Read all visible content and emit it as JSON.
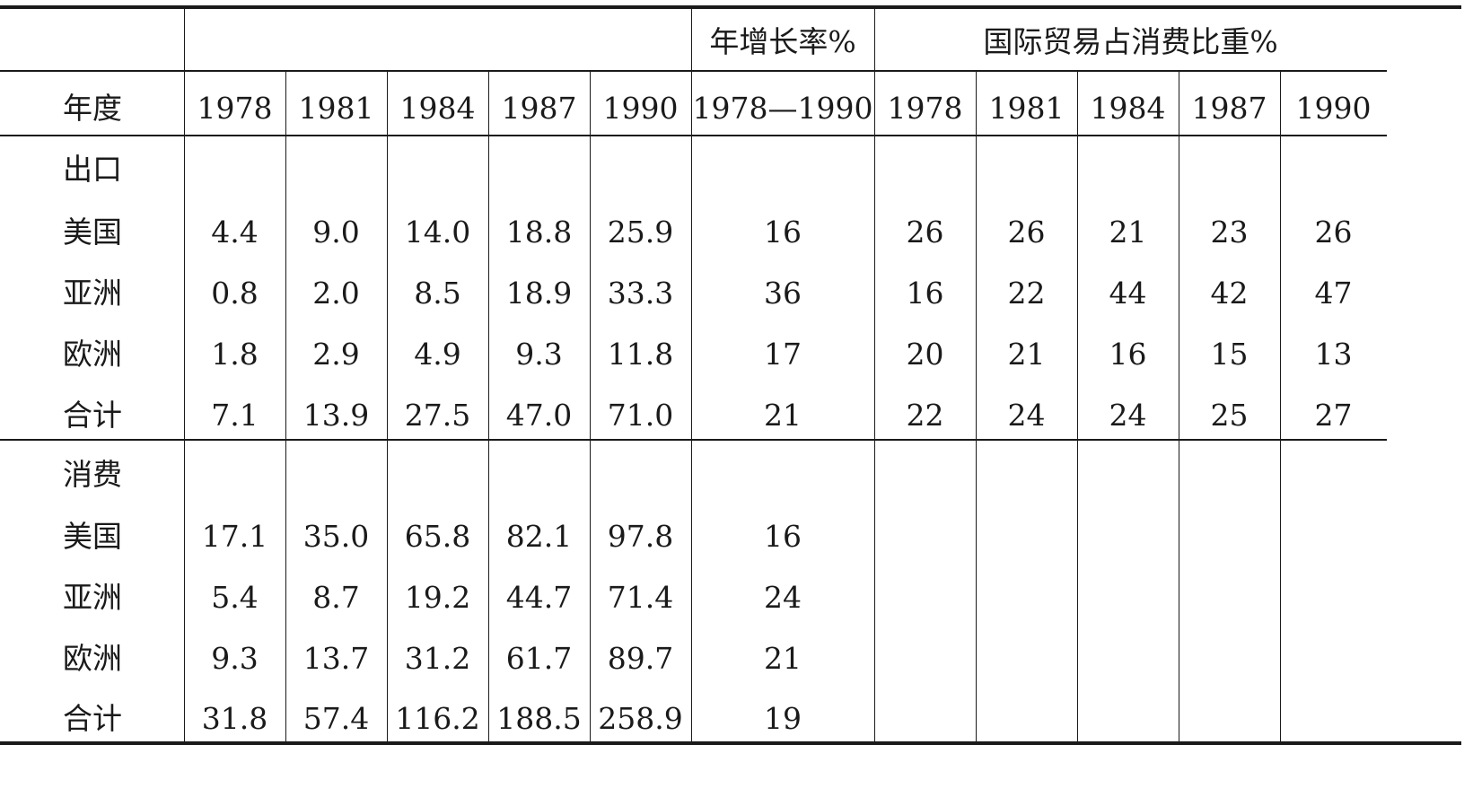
{
  "header": {
    "group_growth": "年增长率%",
    "group_share": "国际贸易占消费比重%",
    "row_label": "年度",
    "years": [
      "1978",
      "1981",
      "1984",
      "1987",
      "1990"
    ],
    "growth_period": "1978—1990",
    "share_years": [
      "1978",
      "1981",
      "1984",
      "1987",
      "1990"
    ]
  },
  "sections": [
    {
      "title": "出口",
      "rows": [
        {
          "label": "美国",
          "values": [
            "4.4",
            "9.0",
            "14.0",
            "18.8",
            "25.9"
          ],
          "growth": "16",
          "shares": [
            "26",
            "26",
            "21",
            "23",
            "26"
          ]
        },
        {
          "label": "亚洲",
          "values": [
            "0.8",
            "2.0",
            "8.5",
            "18.9",
            "33.3"
          ],
          "growth": "36",
          "shares": [
            "16",
            "22",
            "44",
            "42",
            "47"
          ]
        },
        {
          "label": "欧洲",
          "values": [
            "1.8",
            "2.9",
            "4.9",
            "9.3",
            "11.8"
          ],
          "growth": "17",
          "shares": [
            "20",
            "21",
            "16",
            "15",
            "13"
          ]
        },
        {
          "label": "合计",
          "values": [
            "7.1",
            "13.9",
            "27.5",
            "47.0",
            "71.0"
          ],
          "growth": "21",
          "shares": [
            "22",
            "24",
            "24",
            "25",
            "27"
          ]
        }
      ]
    },
    {
      "title": "消费",
      "rows": [
        {
          "label": "美国",
          "values": [
            "17.1",
            "35.0",
            "65.8",
            "82.1",
            "97.8"
          ],
          "growth": "16",
          "shares": [
            "",
            "",
            "",
            "",
            ""
          ]
        },
        {
          "label": "亚洲",
          "values": [
            "5.4",
            "8.7",
            "19.2",
            "44.7",
            "71.4"
          ],
          "growth": "24",
          "shares": [
            "",
            "",
            "",
            "",
            ""
          ]
        },
        {
          "label": "欧洲",
          "values": [
            "9.3",
            "13.7",
            "31.2",
            "61.7",
            "89.7"
          ],
          "growth": "21",
          "shares": [
            "",
            "",
            "",
            "",
            ""
          ]
        },
        {
          "label": "合计",
          "values": [
            "31.8",
            "57.4",
            "116.2",
            "188.5",
            "258.9"
          ],
          "growth": "19",
          "shares": [
            "",
            "",
            "",
            "",
            ""
          ]
        }
      ]
    }
  ]
}
